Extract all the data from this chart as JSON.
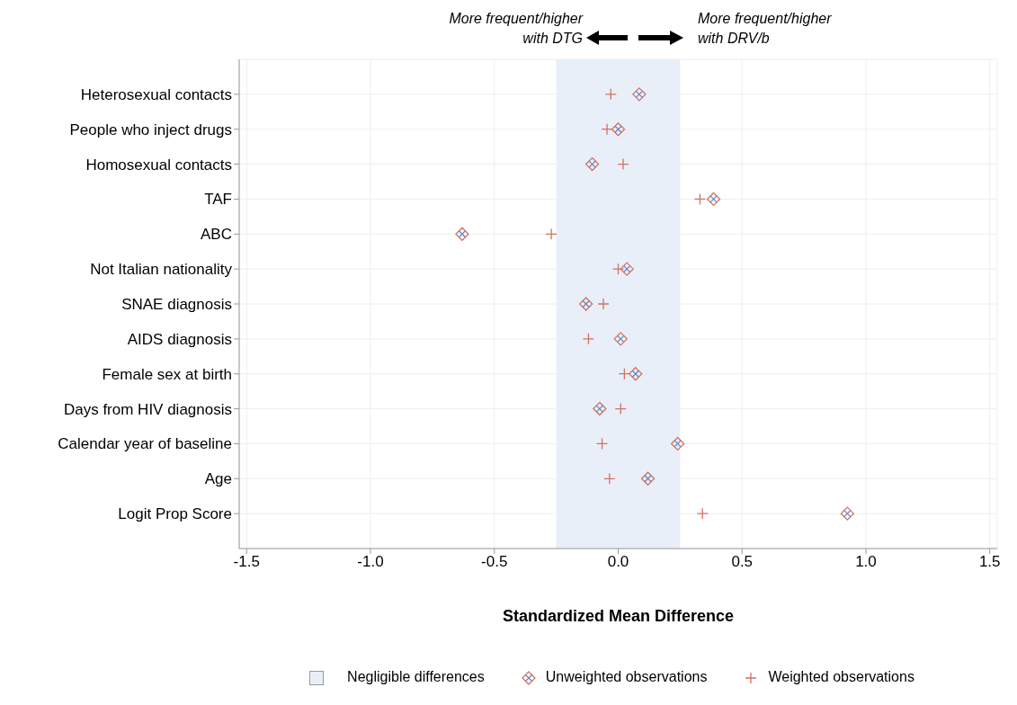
{
  "chart_data": {
    "type": "scatter",
    "orientation": "horizontal",
    "xlabel": "Standardized Mean Difference",
    "categories": [
      "Heterosexual contacts",
      "People who inject drugs",
      "Homosexual contacts",
      "TAF",
      "ABC",
      "Not Italian nationality",
      "SNAE diagnosis",
      "AIDS diagnosis",
      "Female sex at birth",
      "Days from HIV diagnosis",
      "Calendar year of baseline",
      "Age",
      "Logit Prop Score"
    ],
    "series": [
      {
        "name": "Unweighted observations",
        "color": "#d4725e",
        "marker": "diamond",
        "values": [
          0.085,
          0.0,
          -0.105,
          0.385,
          -0.63,
          0.035,
          -0.13,
          0.01,
          0.07,
          -0.075,
          0.24,
          0.12,
          0.925
        ]
      },
      {
        "name": "Weighted observations",
        "color": "#d4725e",
        "marker": "cross",
        "values": [
          -0.03,
          -0.045,
          0.02,
          0.33,
          -0.27,
          0.0,
          -0.06,
          -0.12,
          0.025,
          0.01,
          -0.065,
          -0.035,
          0.34
        ]
      }
    ],
    "xlim": [
      -1.53,
      1.53
    ],
    "xticks": [
      {
        "value": -1.5,
        "label": "-1.5"
      },
      {
        "value": -1.0,
        "label": "-1.0"
      },
      {
        "value": -0.5,
        "label": "-0.5"
      },
      {
        "value": 0.0,
        "label": "0.0"
      },
      {
        "value": 0.5,
        "label": "0.5"
      },
      {
        "value": 1.0,
        "label": "1.0"
      },
      {
        "value": 1.5,
        "label": "1.5"
      }
    ],
    "bands": [
      {
        "axis": "x",
        "from": -0.25,
        "to": 0.25,
        "label": "Negligible differences",
        "color": "#e8eff8"
      }
    ],
    "annotations": [
      "More frequent/higher\nwith DTG",
      "More frequent/higher\nwith DRV/b"
    ],
    "grid": true,
    "legend": "bottom"
  }
}
